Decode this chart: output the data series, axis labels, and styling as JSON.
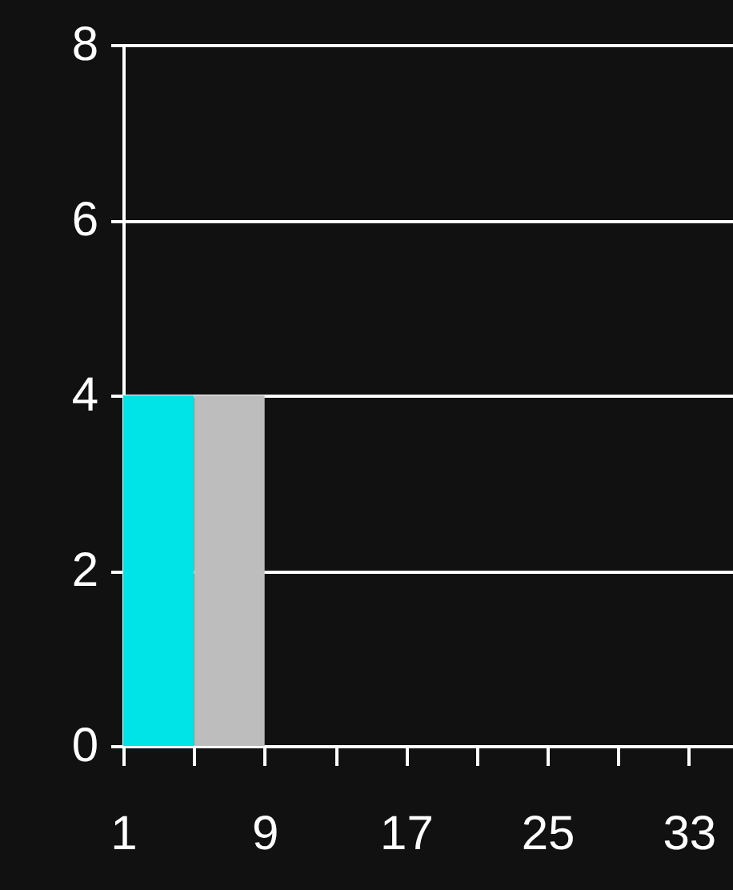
{
  "chart_data": {
    "type": "histogram",
    "bins": [
      1,
      5,
      9
    ],
    "values": [
      4,
      4
    ],
    "colors": [
      "#00e4e8",
      "#bdbdbd"
    ],
    "xlim": [
      1,
      35.5
    ],
    "xticks": [
      1,
      {
        "value": 5,
        "label": null
      },
      9,
      {
        "value": 13,
        "label": null
      },
      17,
      {
        "value": 21,
        "label": null
      },
      25,
      {
        "value": 29,
        "label": null
      },
      33
    ],
    "ylim": [
      0,
      8
    ],
    "yticks": [
      0,
      2,
      4,
      6,
      8
    ],
    "grid": "y"
  }
}
